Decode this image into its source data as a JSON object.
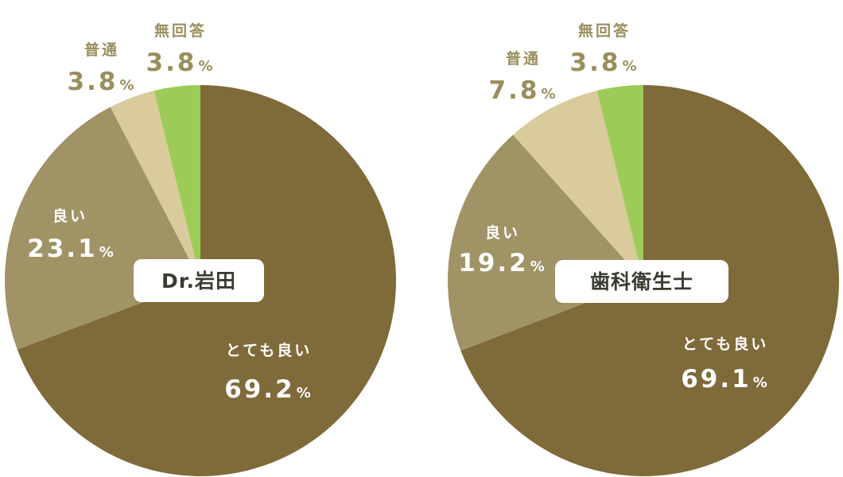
{
  "chart_data": [
    {
      "type": "pie",
      "title": "Dr.岩田",
      "slices": [
        {
          "label": "とても良い",
          "value": 69.2,
          "value_label": "69.2",
          "color": "#7f6a39"
        },
        {
          "label": "良い",
          "value": 23.1,
          "value_label": "23.1",
          "color": "#a09366"
        },
        {
          "label": "普通",
          "value": 3.8,
          "value_label": "3.8",
          "color": "#d9cb9b"
        },
        {
          "label": "無回答",
          "value": 3.8,
          "value_label": "3.8",
          "color": "#9dcb57"
        }
      ],
      "unit": "%"
    },
    {
      "type": "pie",
      "title": "歯科衛生士",
      "slices": [
        {
          "label": "とても良い",
          "value": 69.1,
          "value_label": "69.1",
          "color": "#7f6a39"
        },
        {
          "label": "良い",
          "value": 19.2,
          "value_label": "19.2",
          "color": "#a09366"
        },
        {
          "label": "普通",
          "value": 7.8,
          "value_label": "7.8",
          "color": "#d9cb9b"
        },
        {
          "label": "無回答",
          "value": 3.8,
          "value_label": "3.8",
          "color": "#9dcb57"
        }
      ],
      "unit": "%"
    }
  ]
}
